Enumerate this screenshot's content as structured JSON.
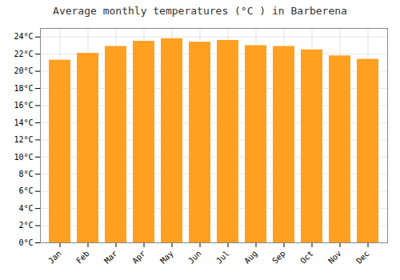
{
  "chart_data": {
    "type": "bar",
    "title": "Average monthly temperatures (°C ) in Barberena",
    "categories": [
      "Jan",
      "Feb",
      "Mar",
      "Apr",
      "May",
      "Jun",
      "Jul",
      "Aug",
      "Sep",
      "Oct",
      "Nov",
      "Dec"
    ],
    "values": [
      21.3,
      22.1,
      22.9,
      23.5,
      23.8,
      23.4,
      23.6,
      23.0,
      22.9,
      22.5,
      21.8,
      21.4
    ],
    "color": "#FFA020",
    "ylim": [
      0,
      25
    ],
    "yticks": [
      {
        "value": 0,
        "label": "0°C"
      },
      {
        "value": 2,
        "label": "2°C"
      },
      {
        "value": 4,
        "label": "4°C"
      },
      {
        "value": 6,
        "label": "6°C"
      },
      {
        "value": 8,
        "label": "8°C"
      },
      {
        "value": 10,
        "label": "10°C"
      },
      {
        "value": 12,
        "label": "12°C"
      },
      {
        "value": 14,
        "label": "14°C"
      },
      {
        "value": 16,
        "label": "16°C"
      },
      {
        "value": 18,
        "label": "18°C"
      },
      {
        "value": 20,
        "label": "20°C"
      },
      {
        "value": 22,
        "label": "22°C"
      },
      {
        "value": 24,
        "label": "24°C"
      }
    ],
    "grid": true
  }
}
